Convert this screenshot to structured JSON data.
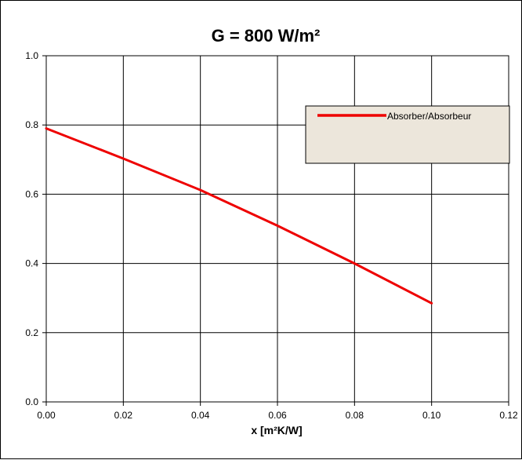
{
  "chart_data": {
    "type": "line",
    "title": "G = 800 W/m²",
    "xlabel": "x [m²K/W]",
    "ylabel": "",
    "xlim": [
      0,
      0.12
    ],
    "ylim": [
      0,
      1.0
    ],
    "x_ticks": [
      "0.00",
      "0.02",
      "0.04",
      "0.06",
      "0.08",
      "0.10",
      "0.12"
    ],
    "y_ticks": [
      "0.0",
      "0.2",
      "0.4",
      "0.6",
      "0.8",
      "1.0"
    ],
    "x_tick_values": [
      0,
      0.02,
      0.04,
      0.06,
      0.08,
      0.1,
      0.12
    ],
    "y_tick_values": [
      0,
      0.2,
      0.4,
      0.6,
      0.8,
      1.0
    ],
    "grid": true,
    "legend_position": "top-right",
    "series": [
      {
        "name": "Absorber/Absorbeur",
        "color": "#ee0000",
        "x": [
          0,
          0.02,
          0.04,
          0.06,
          0.08,
          0.1
        ],
        "y": [
          0.79,
          0.703,
          0.612,
          0.509,
          0.4,
          0.285
        ]
      }
    ],
    "background_color": "#ffffff",
    "legend_background": "#ece6db"
  }
}
